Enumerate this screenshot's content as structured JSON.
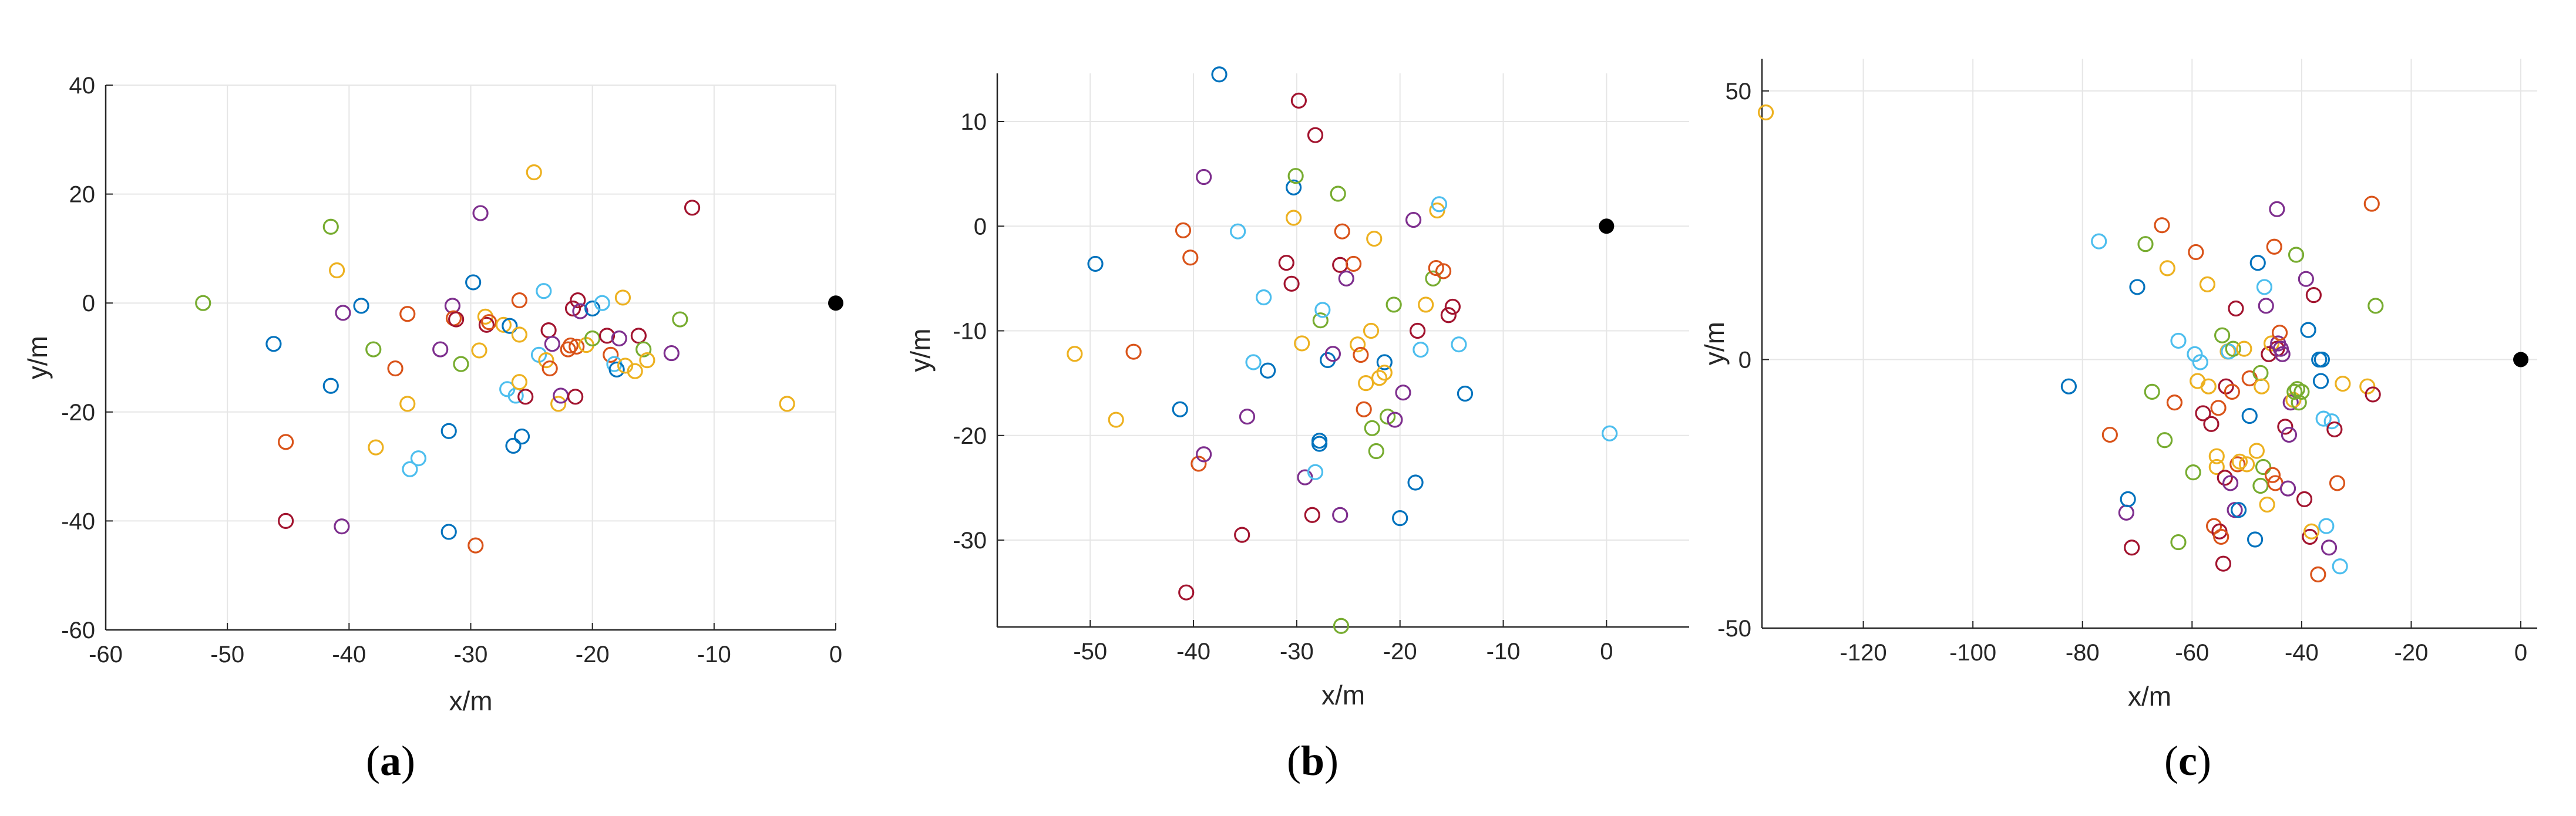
{
  "colors": [
    "#0072BD",
    "#D95319",
    "#EDB120",
    "#7E2F8E",
    "#77AC30",
    "#4DBEEE",
    "#A2142F"
  ],
  "chart_data": [
    {
      "type": "scatter",
      "panel_label": "a",
      "xlabel": "x/m",
      "ylabel": "y/m",
      "xlim": [
        -60,
        0
      ],
      "ylim": [
        -60,
        40
      ],
      "xticks": [
        -60,
        -50,
        -40,
        -30,
        -20,
        -10,
        0
      ],
      "yticks": [
        -60,
        -40,
        -20,
        0,
        20,
        40
      ],
      "grid": true,
      "origin_marker": [
        0,
        0
      ],
      "points": [
        [
          -52,
          0,
          4
        ],
        [
          -46.2,
          -7.5,
          0
        ],
        [
          -45.2,
          -25.5,
          1
        ],
        [
          -45.2,
          -40,
          6
        ],
        [
          -41.5,
          14,
          4
        ],
        [
          -41.5,
          -15.2,
          0
        ],
        [
          -41,
          6,
          2
        ],
        [
          -40.6,
          -41,
          3
        ],
        [
          -40.5,
          -1.8,
          3
        ],
        [
          -39,
          -0.5,
          0
        ],
        [
          -38,
          -8.5,
          4
        ],
        [
          -37.8,
          -26.5,
          2
        ],
        [
          -36.2,
          -12,
          1
        ],
        [
          -35.2,
          -2,
          1
        ],
        [
          -35.2,
          -18.5,
          2
        ],
        [
          -35,
          -30.5,
          5
        ],
        [
          -34.3,
          -28.5,
          5
        ],
        [
          -32.5,
          -8.5,
          3
        ],
        [
          -31.8,
          -23.5,
          0
        ],
        [
          -31.8,
          -42,
          0
        ],
        [
          -31.5,
          -0.5,
          3
        ],
        [
          -31.4,
          -2.8,
          1
        ],
        [
          -31.2,
          -3,
          6
        ],
        [
          -30.8,
          -11.2,
          4
        ],
        [
          -29.8,
          3.8,
          0
        ],
        [
          -29.6,
          -44.5,
          1
        ],
        [
          -29.3,
          -8.7,
          2
        ],
        [
          -29.2,
          16.5,
          3
        ],
        [
          -28.8,
          -2.5,
          2
        ],
        [
          -28.7,
          -4,
          6
        ],
        [
          -28.5,
          -3.5,
          1
        ],
        [
          -27.3,
          -4,
          2
        ],
        [
          -27,
          -15.8,
          5
        ],
        [
          -26.8,
          -4.2,
          0
        ],
        [
          -26.5,
          -26.2,
          0
        ],
        [
          -26.3,
          -17,
          5
        ],
        [
          -26,
          -5.8,
          2
        ],
        [
          -26,
          0.5,
          1
        ],
        [
          -26,
          -14.5,
          2
        ],
        [
          -25.8,
          -24.5,
          0
        ],
        [
          -25.5,
          -17.2,
          6
        ],
        [
          -24.8,
          24,
          2
        ],
        [
          -24.4,
          -9.5,
          5
        ],
        [
          -24,
          2.2,
          5
        ],
        [
          -23.8,
          -10.5,
          2
        ],
        [
          -23.6,
          -5,
          6
        ],
        [
          -23.5,
          -12,
          1
        ],
        [
          -23.3,
          -7.5,
          3
        ],
        [
          -22.8,
          -18.5,
          2
        ],
        [
          -22.6,
          -17,
          3
        ],
        [
          -22,
          -8.5,
          1
        ],
        [
          -21.8,
          -7.8,
          1
        ],
        [
          -21.6,
          -1,
          6
        ],
        [
          -21.4,
          -17.2,
          6
        ],
        [
          -21.3,
          -8,
          1
        ],
        [
          -21.2,
          0.5,
          6
        ],
        [
          -21,
          -1.5,
          3
        ],
        [
          -20.5,
          -7.7,
          2
        ],
        [
          -20,
          -1,
          0
        ],
        [
          -20,
          -6.5,
          4
        ],
        [
          -19.2,
          0,
          5
        ],
        [
          -18.8,
          -6,
          6
        ],
        [
          -18.5,
          -9.5,
          1
        ],
        [
          -18.2,
          -11.2,
          5
        ],
        [
          -18,
          -12.2,
          0
        ],
        [
          -17.8,
          -6.5,
          3
        ],
        [
          -17.5,
          1,
          2
        ],
        [
          -17.3,
          -11.5,
          2
        ],
        [
          -16.5,
          -12.5,
          2
        ],
        [
          -16.2,
          -6,
          6
        ],
        [
          -15.8,
          -8.5,
          4
        ],
        [
          -15.5,
          -10.5,
          2
        ],
        [
          -13.5,
          -9.2,
          3
        ],
        [
          -12.8,
          -3,
          4
        ],
        [
          -11.8,
          17.5,
          6
        ],
        [
          -4,
          -18.5,
          2
        ]
      ]
    },
    {
      "type": "scatter",
      "panel_label": "b",
      "xlabel": "x/m",
      "ylabel": "y/m",
      "xlim": [
        -59,
        8
      ],
      "ylim": [
        -38.3,
        14.6
      ],
      "xticks": [
        -50,
        -40,
        -30,
        -20,
        -10,
        0
      ],
      "yticks": [
        -30,
        -20,
        -10,
        0,
        10
      ],
      "grid": true,
      "origin_marker": [
        0,
        0
      ],
      "points": [
        [
          -51.5,
          -12.2,
          2
        ],
        [
          -49.5,
          -3.6,
          0
        ],
        [
          -47.5,
          -18.5,
          2
        ],
        [
          -45.8,
          -12,
          1
        ],
        [
          -41.3,
          -17.5,
          0
        ],
        [
          -41,
          -0.4,
          1
        ],
        [
          -40.7,
          -35,
          6
        ],
        [
          -40.3,
          -3,
          1
        ],
        [
          -39.5,
          -22.7,
          1
        ],
        [
          -39,
          4.7,
          3
        ],
        [
          -39,
          -21.8,
          3
        ],
        [
          -37.5,
          14.5,
          0
        ],
        [
          -35.7,
          -0.5,
          5
        ],
        [
          -35.3,
          -29.5,
          6
        ],
        [
          -34.8,
          -18.2,
          3
        ],
        [
          -34.2,
          -13,
          5
        ],
        [
          -33.2,
          -6.8,
          5
        ],
        [
          -32.8,
          -13.8,
          0
        ],
        [
          -31,
          -3.5,
          6
        ],
        [
          -30.5,
          -5.5,
          6
        ],
        [
          -30.3,
          0.8,
          2
        ],
        [
          -30.3,
          3.7,
          0
        ],
        [
          -30.1,
          4.8,
          4
        ],
        [
          -29.8,
          12,
          6
        ],
        [
          -29.5,
          -11.2,
          2
        ],
        [
          -29.2,
          -24,
          3
        ],
        [
          -28.5,
          -27.6,
          6
        ],
        [
          -28.2,
          -23.5,
          5
        ],
        [
          -28.2,
          8.7,
          6
        ],
        [
          -27.8,
          -20.5,
          0
        ],
        [
          -27.8,
          -20.8,
          0
        ],
        [
          -27.7,
          -9,
          4
        ],
        [
          -27.5,
          -8,
          5
        ],
        [
          -27,
          -12.8,
          0
        ],
        [
          -26.5,
          -12.2,
          3
        ],
        [
          -26,
          3.1,
          4
        ],
        [
          -25.7,
          -38.2,
          4
        ],
        [
          -25.8,
          -27.6,
          3
        ],
        [
          -25.8,
          -3.7,
          6
        ],
        [
          -25.6,
          -0.5,
          1
        ],
        [
          -25.2,
          -5,
          3
        ],
        [
          -24.5,
          -3.6,
          1
        ],
        [
          -24.1,
          -11.3,
          2
        ],
        [
          -23.8,
          -12.3,
          1
        ],
        [
          -23.5,
          -17.5,
          1
        ],
        [
          -23.3,
          -15,
          2
        ],
        [
          -22.8,
          -10,
          2
        ],
        [
          -22.7,
          -19.3,
          4
        ],
        [
          -22.5,
          -1.2,
          2
        ],
        [
          -22.3,
          -21.5,
          4
        ],
        [
          -22,
          -14.5,
          2
        ],
        [
          -21.5,
          -13,
          0
        ],
        [
          -21.5,
          -14,
          2
        ],
        [
          -21.2,
          -18.2,
          4
        ],
        [
          -20.6,
          -7.5,
          4
        ],
        [
          -20.5,
          -18.5,
          3
        ],
        [
          -20,
          -27.9,
          0
        ],
        [
          -19.7,
          -15.9,
          3
        ],
        [
          -18.7,
          0.6,
          3
        ],
        [
          -18.5,
          -24.5,
          0
        ],
        [
          -18.3,
          -10,
          6
        ],
        [
          -18,
          -11.8,
          5
        ],
        [
          -17.5,
          -7.5,
          2
        ],
        [
          -16.8,
          -5,
          4
        ],
        [
          -16.5,
          -4,
          1
        ],
        [
          -16.4,
          1.5,
          2
        ],
        [
          -16.2,
          2.1,
          5
        ],
        [
          -15.8,
          -4.3,
          1
        ],
        [
          -15.3,
          -8.5,
          6
        ],
        [
          -14.9,
          -7.7,
          6
        ],
        [
          -14.3,
          -11.3,
          5
        ],
        [
          -13.7,
          -16,
          0
        ],
        [
          0.3,
          -19.8,
          5
        ]
      ]
    },
    {
      "type": "scatter",
      "panel_label": "c",
      "xlabel": "x/m",
      "ylabel": "y/m",
      "xlim": [
        -138.5,
        3
      ],
      "ylim": [
        -50,
        56
      ],
      "xticks": [
        -120,
        -100,
        -80,
        -60,
        -40,
        -20,
        0
      ],
      "yticks": [
        -50,
        0,
        50
      ],
      "grid": true,
      "origin_marker": [
        0,
        0
      ],
      "points": [
        [
          -137.8,
          46,
          2
        ],
        [
          -82.5,
          -5,
          0
        ],
        [
          -77,
          22,
          5
        ],
        [
          -75,
          -14,
          1
        ],
        [
          -72,
          -28.5,
          3
        ],
        [
          -71.7,
          -26,
          0
        ],
        [
          -71,
          -35,
          6
        ],
        [
          -70,
          13.5,
          0
        ],
        [
          -68.5,
          21.5,
          4
        ],
        [
          -67.3,
          -6,
          4
        ],
        [
          -65.5,
          25,
          1
        ],
        [
          -65,
          -15,
          4
        ],
        [
          -64.5,
          17,
          2
        ],
        [
          -63.2,
          -8,
          1
        ],
        [
          -62.5,
          -34,
          4
        ],
        [
          -62.5,
          3.5,
          5
        ],
        [
          -59.8,
          -21,
          4
        ],
        [
          -59.5,
          1,
          5
        ],
        [
          -59.3,
          20,
          1
        ],
        [
          -59,
          -4,
          2
        ],
        [
          -58.5,
          -0.5,
          5
        ],
        [
          -58,
          -10,
          6
        ],
        [
          -57.2,
          14,
          2
        ],
        [
          -57,
          -5,
          2
        ],
        [
          -56.5,
          -12,
          6
        ],
        [
          -56,
          -31,
          1
        ],
        [
          -55.5,
          -18,
          2
        ],
        [
          -55.5,
          -20,
          2
        ],
        [
          -55.2,
          -9,
          1
        ],
        [
          -55,
          -32,
          6
        ],
        [
          -54.7,
          -33,
          1
        ],
        [
          -54.5,
          4.5,
          4
        ],
        [
          -54.3,
          -38,
          6
        ],
        [
          -54,
          -22,
          6
        ],
        [
          -53.8,
          -5,
          6
        ],
        [
          -53.5,
          1.5,
          2
        ],
        [
          -53.3,
          1.5,
          5
        ],
        [
          -53,
          -23,
          3
        ],
        [
          -52.7,
          -6,
          1
        ],
        [
          -52.5,
          2,
          4
        ],
        [
          -52.2,
          -28,
          3
        ],
        [
          -52,
          9.5,
          6
        ],
        [
          -51.7,
          -19.5,
          1
        ],
        [
          -51.5,
          -28,
          0
        ],
        [
          -51.3,
          -19,
          2
        ],
        [
          -50.5,
          2,
          2
        ],
        [
          -50,
          -19.5,
          2
        ],
        [
          -49.5,
          -3.5,
          1
        ],
        [
          -49.5,
          -10.5,
          0
        ],
        [
          -48.5,
          -33.5,
          0
        ],
        [
          -48.2,
          -17,
          2
        ],
        [
          -48,
          18,
          0
        ],
        [
          -47.5,
          -2.5,
          4
        ],
        [
          -47.5,
          -23.5,
          4
        ],
        [
          -47.3,
          -5,
          2
        ],
        [
          -47,
          -20,
          4
        ],
        [
          -46.8,
          13.5,
          5
        ],
        [
          -46.5,
          10,
          3
        ],
        [
          -46.3,
          -27,
          2
        ],
        [
          -46,
          1,
          6
        ],
        [
          -45.5,
          3,
          2
        ],
        [
          -45.3,
          -21.5,
          1
        ],
        [
          -45,
          21,
          1
        ],
        [
          -44.8,
          -23,
          1
        ],
        [
          -44.5,
          2,
          6
        ],
        [
          -44.5,
          28,
          3
        ],
        [
          -44.3,
          3,
          3
        ],
        [
          -44,
          5,
          1
        ],
        [
          -43.8,
          2,
          3
        ],
        [
          -43.5,
          1,
          3
        ],
        [
          -43,
          -12.5,
          6
        ],
        [
          -42.5,
          -24,
          3
        ],
        [
          -42.3,
          -14,
          3
        ],
        [
          -42,
          -8,
          3
        ],
        [
          -41.5,
          -7.5,
          2
        ],
        [
          -41.3,
          -6,
          4
        ],
        [
          -41,
          19.5,
          4
        ],
        [
          -40.8,
          -5.5,
          4
        ],
        [
          -40.5,
          -8,
          4
        ],
        [
          -40,
          -6,
          4
        ],
        [
          -39.5,
          -26,
          6
        ],
        [
          -39.2,
          15,
          3
        ],
        [
          -38.8,
          5.5,
          0
        ],
        [
          -38.5,
          -33,
          6
        ],
        [
          -38.2,
          -32,
          2
        ],
        [
          -37.8,
          12,
          6
        ],
        [
          -37,
          -40,
          1
        ],
        [
          -36.8,
          0,
          0
        ],
        [
          -36.5,
          -4,
          0
        ],
        [
          -36.3,
          0,
          0
        ],
        [
          -36,
          -11,
          5
        ],
        [
          -35.5,
          -31,
          5
        ],
        [
          -35,
          -35,
          3
        ],
        [
          -34.5,
          -11.5,
          5
        ],
        [
          -34,
          -13,
          6
        ],
        [
          -33.5,
          -23,
          1
        ],
        [
          -33,
          -38.5,
          5
        ],
        [
          -32.5,
          -4.5,
          2
        ],
        [
          -28,
          -5,
          2
        ],
        [
          -27.2,
          29,
          1
        ],
        [
          -27,
          -6.5,
          6
        ],
        [
          -26.5,
          10,
          4
        ]
      ]
    }
  ]
}
